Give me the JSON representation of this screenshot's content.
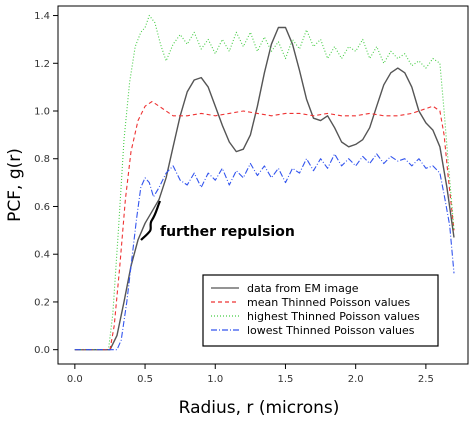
{
  "chart_data": {
    "type": "line",
    "xlabel": "Radius, r (microns)",
    "ylabel": "PCF, g(r)",
    "xlim": [
      -0.12,
      2.8
    ],
    "ylim": [
      -0.06,
      1.44
    ],
    "xticks": [
      0.0,
      0.5,
      1.0,
      1.5,
      2.0,
      2.5
    ],
    "xtick_labels": [
      "0.0",
      "0.5",
      "1.0",
      "1.5",
      "2.0",
      "2.5"
    ],
    "yticks": [
      0.0,
      0.2,
      0.4,
      0.6,
      0.8,
      1.0,
      1.2,
      1.4
    ],
    "ytick_labels": [
      "0.0",
      "0.2",
      "0.4",
      "0.6",
      "0.8",
      "1.0",
      "1.2",
      "1.4"
    ],
    "grid": false,
    "legend_position": "bottom-right",
    "annotation": {
      "text": "further repulsion",
      "x": 0.63,
      "y": 0.43
    },
    "series": [
      {
        "name": "data from EM image",
        "color": "#555555",
        "style": "solid",
        "points": [
          [
            0.0,
            0.0
          ],
          [
            0.25,
            0.0
          ],
          [
            0.3,
            0.06
          ],
          [
            0.35,
            0.2
          ],
          [
            0.4,
            0.35
          ],
          [
            0.45,
            0.46
          ],
          [
            0.5,
            0.53
          ],
          [
            0.55,
            0.58
          ],
          [
            0.6,
            0.63
          ],
          [
            0.65,
            0.72
          ],
          [
            0.7,
            0.85
          ],
          [
            0.75,
            0.98
          ],
          [
            0.8,
            1.08
          ],
          [
            0.85,
            1.13
          ],
          [
            0.9,
            1.14
          ],
          [
            0.95,
            1.1
          ],
          [
            1.0,
            1.02
          ],
          [
            1.05,
            0.94
          ],
          [
            1.1,
            0.87
          ],
          [
            1.15,
            0.83
          ],
          [
            1.2,
            0.84
          ],
          [
            1.25,
            0.9
          ],
          [
            1.3,
            1.02
          ],
          [
            1.35,
            1.16
          ],
          [
            1.4,
            1.28
          ],
          [
            1.45,
            1.35
          ],
          [
            1.5,
            1.35
          ],
          [
            1.55,
            1.28
          ],
          [
            1.6,
            1.17
          ],
          [
            1.65,
            1.05
          ],
          [
            1.7,
            0.97
          ],
          [
            1.75,
            0.96
          ],
          [
            1.8,
            0.98
          ],
          [
            1.85,
            0.93
          ],
          [
            1.9,
            0.87
          ],
          [
            1.95,
            0.85
          ],
          [
            2.0,
            0.86
          ],
          [
            2.05,
            0.88
          ],
          [
            2.1,
            0.93
          ],
          [
            2.15,
            1.02
          ],
          [
            2.2,
            1.11
          ],
          [
            2.25,
            1.16
          ],
          [
            2.3,
            1.18
          ],
          [
            2.35,
            1.16
          ],
          [
            2.4,
            1.1
          ],
          [
            2.45,
            1.0
          ],
          [
            2.5,
            0.95
          ],
          [
            2.55,
            0.92
          ],
          [
            2.6,
            0.85
          ],
          [
            2.65,
            0.68
          ],
          [
            2.7,
            0.47
          ]
        ]
      },
      {
        "name": "mean Thinned Poisson values",
        "color": "#ee3333",
        "style": "dashed",
        "points": [
          [
            0.0,
            0.0
          ],
          [
            0.25,
            0.0
          ],
          [
            0.28,
            0.1
          ],
          [
            0.32,
            0.35
          ],
          [
            0.36,
            0.63
          ],
          [
            0.4,
            0.83
          ],
          [
            0.45,
            0.96
          ],
          [
            0.5,
            1.02
          ],
          [
            0.55,
            1.04
          ],
          [
            0.6,
            1.02
          ],
          [
            0.65,
            1.0
          ],
          [
            0.7,
            0.98
          ],
          [
            0.8,
            0.98
          ],
          [
            0.9,
            0.99
          ],
          [
            1.0,
            0.98
          ],
          [
            1.1,
            0.99
          ],
          [
            1.2,
            1.0
          ],
          [
            1.3,
            0.99
          ],
          [
            1.4,
            0.98
          ],
          [
            1.5,
            0.99
          ],
          [
            1.6,
            0.99
          ],
          [
            1.7,
            0.98
          ],
          [
            1.8,
            0.99
          ],
          [
            1.9,
            0.98
          ],
          [
            2.0,
            0.98
          ],
          [
            2.1,
            0.99
          ],
          [
            2.2,
            0.98
          ],
          [
            2.3,
            0.98
          ],
          [
            2.4,
            0.99
          ],
          [
            2.5,
            1.01
          ],
          [
            2.55,
            1.02
          ],
          [
            2.6,
            1.0
          ],
          [
            2.63,
            0.9
          ],
          [
            2.66,
            0.72
          ],
          [
            2.7,
            0.5
          ]
        ]
      },
      {
        "name": "highest Thinned Poisson values",
        "color": "#44cc44",
        "style": "dotted",
        "points": [
          [
            0.0,
            0.0
          ],
          [
            0.24,
            0.0
          ],
          [
            0.27,
            0.15
          ],
          [
            0.31,
            0.5
          ],
          [
            0.35,
            0.88
          ],
          [
            0.39,
            1.12
          ],
          [
            0.43,
            1.27
          ],
          [
            0.47,
            1.33
          ],
          [
            0.5,
            1.35
          ],
          [
            0.53,
            1.4
          ],
          [
            0.57,
            1.37
          ],
          [
            0.61,
            1.28
          ],
          [
            0.65,
            1.21
          ],
          [
            0.7,
            1.28
          ],
          [
            0.75,
            1.32
          ],
          [
            0.8,
            1.28
          ],
          [
            0.85,
            1.33
          ],
          [
            0.9,
            1.26
          ],
          [
            0.95,
            1.3
          ],
          [
            1.0,
            1.24
          ],
          [
            1.05,
            1.3
          ],
          [
            1.1,
            1.25
          ],
          [
            1.15,
            1.33
          ],
          [
            1.2,
            1.27
          ],
          [
            1.25,
            1.33
          ],
          [
            1.3,
            1.25
          ],
          [
            1.35,
            1.31
          ],
          [
            1.4,
            1.25
          ],
          [
            1.45,
            1.29
          ],
          [
            1.5,
            1.22
          ],
          [
            1.55,
            1.3
          ],
          [
            1.6,
            1.26
          ],
          [
            1.65,
            1.34
          ],
          [
            1.7,
            1.27
          ],
          [
            1.75,
            1.3
          ],
          [
            1.8,
            1.22
          ],
          [
            1.85,
            1.27
          ],
          [
            1.9,
            1.22
          ],
          [
            1.95,
            1.27
          ],
          [
            2.0,
            1.25
          ],
          [
            2.05,
            1.3
          ],
          [
            2.1,
            1.22
          ],
          [
            2.15,
            1.27
          ],
          [
            2.2,
            1.2
          ],
          [
            2.25,
            1.25
          ],
          [
            2.3,
            1.22
          ],
          [
            2.35,
            1.24
          ],
          [
            2.4,
            1.19
          ],
          [
            2.45,
            1.21
          ],
          [
            2.5,
            1.18
          ],
          [
            2.55,
            1.22
          ],
          [
            2.6,
            1.2
          ],
          [
            2.63,
            1.0
          ],
          [
            2.66,
            0.78
          ],
          [
            2.7,
            0.5
          ]
        ]
      },
      {
        "name": "lowest Thinned Poisson values",
        "color": "#3355ee",
        "style": "dashdot",
        "points": [
          [
            0.0,
            0.0
          ],
          [
            0.3,
            0.0
          ],
          [
            0.33,
            0.04
          ],
          [
            0.37,
            0.2
          ],
          [
            0.41,
            0.4
          ],
          [
            0.44,
            0.55
          ],
          [
            0.47,
            0.68
          ],
          [
            0.5,
            0.72
          ],
          [
            0.53,
            0.7
          ],
          [
            0.56,
            0.64
          ],
          [
            0.6,
            0.68
          ],
          [
            0.65,
            0.74
          ],
          [
            0.7,
            0.77
          ],
          [
            0.75,
            0.71
          ],
          [
            0.8,
            0.69
          ],
          [
            0.85,
            0.74
          ],
          [
            0.9,
            0.68
          ],
          [
            0.95,
            0.74
          ],
          [
            1.0,
            0.71
          ],
          [
            1.05,
            0.76
          ],
          [
            1.1,
            0.69
          ],
          [
            1.15,
            0.75
          ],
          [
            1.2,
            0.72
          ],
          [
            1.25,
            0.78
          ],
          [
            1.3,
            0.73
          ],
          [
            1.35,
            0.77
          ],
          [
            1.4,
            0.72
          ],
          [
            1.45,
            0.76
          ],
          [
            1.5,
            0.7
          ],
          [
            1.55,
            0.76
          ],
          [
            1.6,
            0.74
          ],
          [
            1.65,
            0.8
          ],
          [
            1.7,
            0.75
          ],
          [
            1.75,
            0.8
          ],
          [
            1.8,
            0.76
          ],
          [
            1.85,
            0.82
          ],
          [
            1.9,
            0.77
          ],
          [
            1.95,
            0.8
          ],
          [
            2.0,
            0.77
          ],
          [
            2.05,
            0.81
          ],
          [
            2.1,
            0.78
          ],
          [
            2.15,
            0.82
          ],
          [
            2.2,
            0.78
          ],
          [
            2.25,
            0.81
          ],
          [
            2.3,
            0.79
          ],
          [
            2.35,
            0.8
          ],
          [
            2.4,
            0.77
          ],
          [
            2.45,
            0.8
          ],
          [
            2.5,
            0.76
          ],
          [
            2.55,
            0.77
          ],
          [
            2.6,
            0.74
          ],
          [
            2.63,
            0.65
          ],
          [
            2.67,
            0.52
          ],
          [
            2.7,
            0.32
          ]
        ]
      }
    ]
  }
}
